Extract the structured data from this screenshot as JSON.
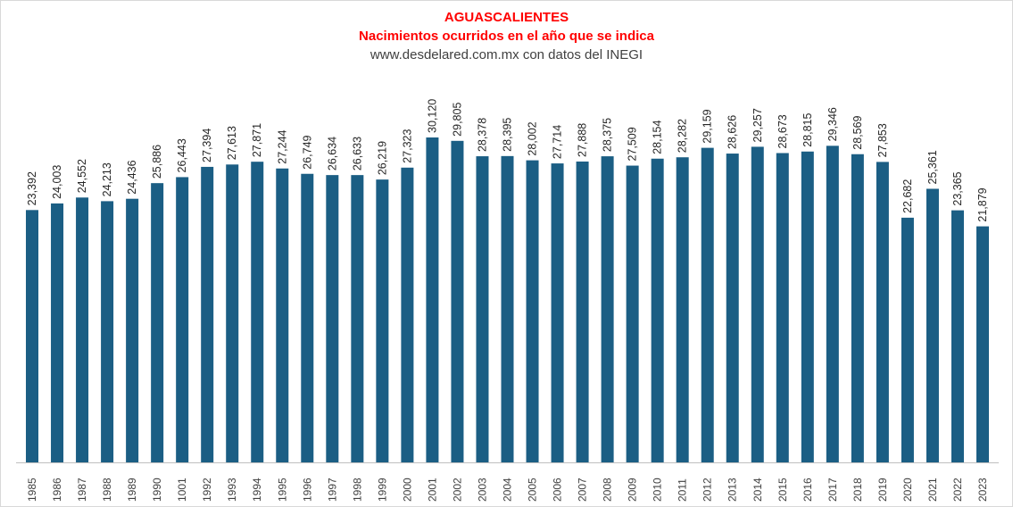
{
  "title": "AGUASCALIENTES",
  "subtitle": "Nacimientos ocurridos en el año que se indica",
  "source": "www.desdelared.com.mx con datos del INEGI",
  "colors": {
    "bar": "#1b5e84",
    "title": "#ff0000",
    "axis": "#bfbfbf"
  },
  "chart_data": {
    "type": "bar",
    "title": "AGUASCALIENTES",
    "subtitle": "Nacimientos ocurridos en el año que se indica",
    "xlabel": "",
    "ylabel": "",
    "ylim": [
      0,
      31000
    ],
    "grid": false,
    "legend": "none",
    "categories": [
      "1985",
      "1986",
      "1987",
      "1988",
      "1989",
      "1990",
      "1001",
      "1992",
      "1993",
      "1994",
      "1995",
      "1996",
      "1997",
      "1998",
      "1999",
      "2000",
      "2001",
      "2002",
      "2003",
      "2004",
      "2005",
      "2006",
      "2007",
      "2008",
      "2009",
      "2010",
      "2011",
      "2012",
      "2013",
      "2014",
      "2015",
      "2016",
      "2017",
      "2018",
      "2019",
      "2020",
      "2021",
      "2022",
      "2023"
    ],
    "values": [
      23392,
      24003,
      24552,
      24213,
      24436,
      25886,
      26443,
      27394,
      27613,
      27871,
      27244,
      26749,
      26634,
      26633,
      26219,
      27323,
      30120,
      29805,
      28378,
      28395,
      28002,
      27714,
      27888,
      28375,
      27509,
      28154,
      28282,
      29159,
      28626,
      29257,
      28673,
      28815,
      29346,
      28569,
      27853,
      22682,
      25361,
      23365,
      21879
    ],
    "labels": [
      "23,392",
      "24,003",
      "24,552",
      "24,213",
      "24,436",
      "25,886",
      "26,443",
      "27,394",
      "27,613",
      "27,871",
      "27,244",
      "26,749",
      "26,634",
      "26,633",
      "26,219",
      "27,323",
      "30,120",
      "29,805",
      "28,378",
      "28,395",
      "28,002",
      "27,714",
      "27,888",
      "28,375",
      "27,509",
      "28,154",
      "28,282",
      "29,159",
      "28,626",
      "29,257",
      "28,673",
      "28,815",
      "29,346",
      "28,569",
      "27,853",
      "22,682",
      "25,361",
      "23,365",
      "21,879"
    ]
  }
}
